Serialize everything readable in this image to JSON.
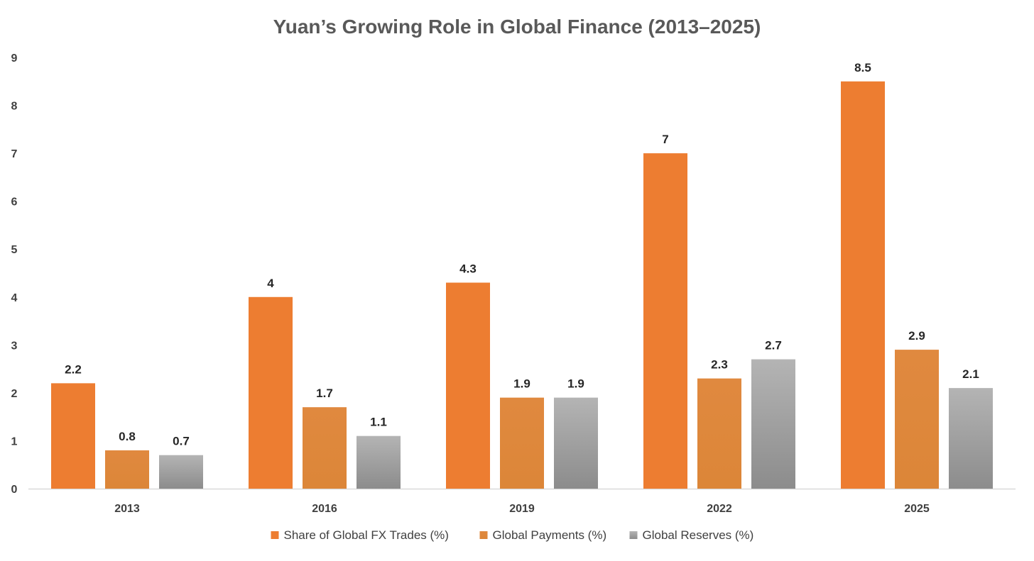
{
  "chart_data": {
    "type": "bar",
    "title": "Yuan’s Growing Role in Global Finance (2013–2025)",
    "xlabel": "",
    "ylabel": "",
    "categories": [
      "2013",
      "2016",
      "2019",
      "2022",
      "2025"
    ],
    "series": [
      {
        "name": "Share of Global FX Trades (%)",
        "values": [
          2.2,
          4,
          4.3,
          7,
          8.5
        ],
        "color": "#ED7D31"
      },
      {
        "name": "Global Payments (%)",
        "values": [
          0.8,
          1.7,
          1.9,
          2.3,
          2.9
        ],
        "color": "#E0893F"
      },
      {
        "name": "Global Reserves (%)",
        "values": [
          0.7,
          1.1,
          1.9,
          2.7,
          2.1
        ],
        "color": "#A6A6A6"
      }
    ],
    "ylim": [
      0,
      9
    ],
    "yticks": [
      0,
      1,
      2,
      3,
      4,
      5,
      6,
      7,
      8,
      9
    ],
    "grid": false,
    "data_labels": true,
    "legend_position": "bottom"
  }
}
